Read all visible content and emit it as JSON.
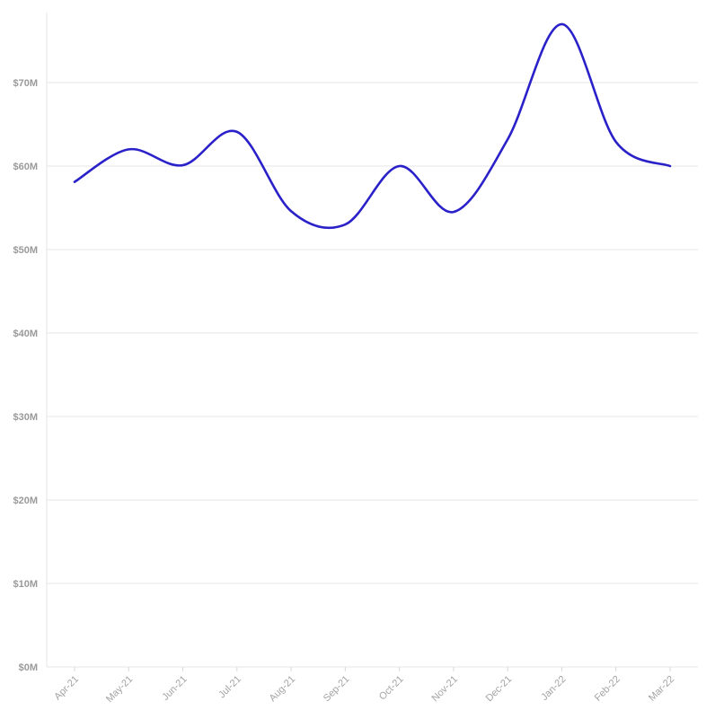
{
  "chart_data": {
    "type": "line",
    "title": "",
    "xlabel": "",
    "ylabel": "",
    "categories": [
      "Apr-21",
      "May-21",
      "Jun-21",
      "Jul-21",
      "Aug-21",
      "Sep-21",
      "Oct-21",
      "Nov-21",
      "Dec-21",
      "Jan-22",
      "Feb-22",
      "Mar-22"
    ],
    "series": [
      {
        "values": [
          58.1,
          62.0,
          60.1,
          64.1,
          54.6,
          53.0,
          60.0,
          54.5,
          63.2,
          77.0,
          62.9,
          60.0
        ],
        "color": "#2a21c9"
      }
    ],
    "ylim": [
      0,
      78
    ],
    "yticks": [
      0,
      10,
      20,
      30,
      40,
      50,
      60,
      70
    ],
    "ytick_labels": [
      "$0M",
      "$10M",
      "$20M",
      "$30M",
      "$40M",
      "$50M",
      "$60M",
      "$70M"
    ],
    "grid": true,
    "legend": "none",
    "curve": "smooth"
  }
}
